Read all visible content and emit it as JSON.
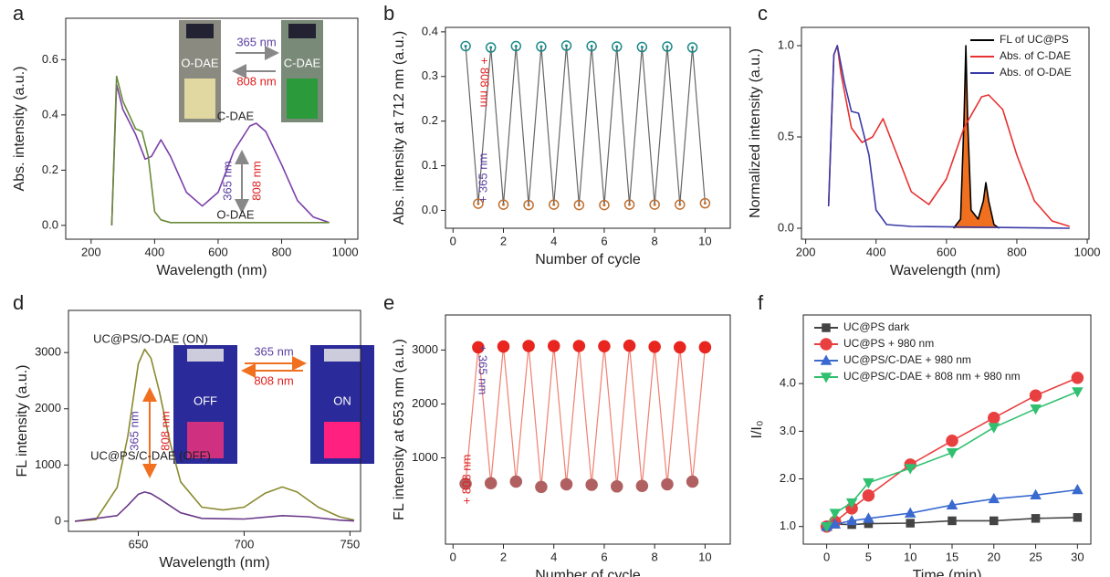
{
  "chart_data": [
    {
      "type": "line",
      "panel": "a",
      "xlabel": "Wavelength (nm)",
      "ylabel": "Abs. intensity (a.u.)",
      "xlim": [
        120,
        1040
      ],
      "ylim": [
        -0.05,
        0.75
      ],
      "xticks": [
        200,
        400,
        600,
        800,
        1000
      ],
      "yticks": [
        {
          "value": 0,
          "label": "0.0"
        },
        0.2,
        0.4,
        0.6
      ],
      "series": [
        {
          "name": "C-DAE",
          "color": "#7b3fa8",
          "x": [
            265,
            280,
            300,
            340,
            370,
            390,
            420,
            450,
            500,
            550,
            600,
            650,
            700,
            720,
            750,
            800,
            850,
            900,
            950
          ],
          "values": [
            0,
            0.51,
            0.42,
            0.33,
            0.24,
            0.25,
            0.31,
            0.25,
            0.12,
            0.07,
            0.12,
            0.27,
            0.36,
            0.37,
            0.34,
            0.22,
            0.09,
            0.03,
            0.01
          ]
        },
        {
          "name": "O-DAE",
          "color": "#6a8a3a",
          "x": [
            265,
            280,
            300,
            340,
            360,
            380,
            400,
            420,
            450,
            500,
            600,
            700,
            800,
            950
          ],
          "values": [
            0,
            0.54,
            0.45,
            0.35,
            0.34,
            0.25,
            0.05,
            0.02,
            0.01,
            0.01,
            0.01,
            0.01,
            0.01,
            0.01
          ]
        }
      ],
      "annotations": [
        "365 nm",
        "808 nm",
        "O-DAE",
        "C-DAE",
        "365 nm",
        "808 nm"
      ]
    },
    {
      "type": "scatter",
      "panel": "b",
      "xlabel": "Number of cycle",
      "ylabel": "Abs. intensity at 712 nm (a.u.)",
      "xlim": [
        -0.3,
        11
      ],
      "ylim": [
        -0.04,
        0.41
      ],
      "xticks": [
        0,
        2,
        4,
        6,
        8,
        10
      ],
      "yticks": [
        {
          "value": 0,
          "label": "0.0"
        },
        0.1,
        0.2,
        0.3,
        0.4
      ],
      "line_color": "#666666",
      "series": [
        {
          "color": "#1a8a8a",
          "marker": "open",
          "x": [
            0.5,
            1.5,
            2.5,
            3.5,
            4.5,
            5.5,
            6.5,
            7.5,
            8.5,
            9.5
          ],
          "values": [
            0.368,
            0.365,
            0.368,
            0.367,
            0.369,
            0.368,
            0.367,
            0.366,
            0.367,
            0.365
          ]
        },
        {
          "color": "#c07030",
          "marker": "open",
          "x": [
            1,
            2,
            3,
            4,
            5,
            6,
            7,
            8,
            9,
            10
          ],
          "values": [
            0.015,
            0.013,
            0.012,
            0.013,
            0.012,
            0.012,
            0.013,
            0.013,
            0.013,
            0.016
          ]
        }
      ],
      "annotations": [
        "+ 808 nm",
        "+ 365 nm"
      ]
    },
    {
      "type": "line",
      "panel": "c",
      "xlabel": "Wavelength (nm)",
      "ylabel": "Normalized intensity (a.u.)",
      "xlim": [
        188,
        1005
      ],
      "ylim": [
        -0.06,
        1.1
      ],
      "xticks": [
        200,
        400,
        600,
        800,
        1000
      ],
      "yticks": [
        {
          "value": 0,
          "label": "0.0"
        },
        0.5,
        {
          "value": 1,
          "label": "1.0"
        }
      ],
      "legend": "upper right",
      "series": [
        {
          "name": "FL of UC@PS",
          "color": "#000000",
          "fill": "#f07020",
          "x": [
            620,
            640,
            650,
            655,
            660,
            670,
            690,
            705,
            712,
            720,
            735,
            750
          ],
          "values": [
            0,
            0.05,
            0.6,
            1.0,
            0.6,
            0.1,
            0.05,
            0.15,
            0.25,
            0.15,
            0.02,
            0
          ]
        },
        {
          "name": "Abs. of C-DAE",
          "color": "#e83030",
          "x": [
            265,
            280,
            290,
            300,
            330,
            360,
            390,
            420,
            450,
            500,
            550,
            600,
            650,
            700,
            720,
            760,
            800,
            850,
            900,
            950
          ],
          "values": [
            0.12,
            0.95,
            1.0,
            0.85,
            0.55,
            0.47,
            0.5,
            0.6,
            0.45,
            0.2,
            0.13,
            0.27,
            0.55,
            0.72,
            0.73,
            0.65,
            0.4,
            0.15,
            0.04,
            0.01
          ]
        },
        {
          "name": "Abs. of O-DAE",
          "color": "#3a3aa8",
          "x": [
            265,
            280,
            290,
            310,
            330,
            350,
            380,
            400,
            430,
            500,
            950
          ],
          "values": [
            0.12,
            0.95,
            1.0,
            0.8,
            0.64,
            0.63,
            0.4,
            0.1,
            0.02,
            0.01,
            0
          ]
        }
      ]
    },
    {
      "type": "line",
      "panel": "d",
      "xlabel": "Wavelength (nm)",
      "ylabel": "FL intensity (a.u.)",
      "xlim": [
        617,
        755
      ],
      "ylim": [
        -180,
        3750
      ],
      "xticks": [
        650,
        700,
        750
      ],
      "yticks": [
        0,
        1000,
        2000,
        3000
      ],
      "series": [
        {
          "name": "UC@PS/O-DAE (ON)",
          "color": "#8a8a30",
          "x": [
            620,
            630,
            640,
            645,
            650,
            653,
            656,
            660,
            665,
            670,
            680,
            690,
            700,
            710,
            718,
            725,
            735,
            745,
            752
          ],
          "values": [
            0,
            30,
            600,
            1500,
            2800,
            3060,
            2900,
            2300,
            1400,
            700,
            250,
            200,
            250,
            500,
            610,
            520,
            250,
            80,
            20
          ]
        },
        {
          "name": "UC@PS/C-DAE (OFF)",
          "color": "#6a3a8a",
          "x": [
            620,
            640,
            645,
            650,
            653,
            656,
            660,
            670,
            680,
            700,
            718,
            730,
            745,
            752
          ],
          "values": [
            0,
            100,
            280,
            480,
            520,
            490,
            400,
            150,
            50,
            40,
            100,
            80,
            20,
            5
          ]
        }
      ],
      "annotations": [
        "365 nm",
        "808 nm",
        "OFF",
        "ON",
        "365 nm",
        "808 nm"
      ]
    },
    {
      "type": "scatter",
      "panel": "e",
      "xlabel": "Number of cycle",
      "ylabel": "FL intensity at 653 nm (a.u.)",
      "xlim": [
        -0.3,
        11
      ],
      "ylim": [
        -600,
        3650
      ],
      "xticks": [
        0,
        2,
        4,
        6,
        8,
        10
      ],
      "yticks": [
        1000,
        2000,
        3000
      ],
      "line_color": "#f08070",
      "series": [
        {
          "color": "#b06060",
          "marker": "filled",
          "x": [
            0.5,
            1.5,
            2.5,
            3.5,
            4.5,
            5.5,
            6.5,
            7.5,
            8.5,
            9.5
          ],
          "values": [
            520,
            530,
            560,
            460,
            510,
            500,
            470,
            480,
            510,
            560
          ]
        },
        {
          "color": "#e8251f",
          "marker": "filled",
          "x": [
            1,
            2,
            3,
            4,
            5,
            6,
            7,
            8,
            9,
            10
          ],
          "values": [
            3050,
            3065,
            3075,
            3075,
            3075,
            3070,
            3080,
            3060,
            3050,
            3050
          ]
        }
      ],
      "annotations": [
        "+ 365 nm",
        "+ 808 nm"
      ]
    },
    {
      "type": "line",
      "panel": "f",
      "xlabel": "Time (min)",
      "ylabel": "I/I₀",
      "xlim": [
        -2.8,
        31.6
      ],
      "ylim": [
        0.63,
        5.44
      ],
      "xticks": [
        0,
        5,
        10,
        15,
        20,
        25,
        30
      ],
      "yticks": [
        {
          "value": 1,
          "label": "1.0"
        },
        {
          "value": 2,
          "label": "2.0"
        },
        {
          "value": 3,
          "label": "3.0"
        },
        {
          "value": 4,
          "label": "4.0"
        }
      ],
      "legend": "upper left",
      "series": [
        {
          "name": "UC@PS dark",
          "color": "#444444",
          "marker": "square",
          "x": [
            0,
            1,
            3,
            5,
            10,
            15,
            20,
            25,
            30
          ],
          "values": [
            1.0,
            1.05,
            1.04,
            1.06,
            1.07,
            1.12,
            1.12,
            1.17,
            1.19
          ]
        },
        {
          "name": "UC@PS + 980 nm",
          "color": "#e84040",
          "marker": "circle",
          "x": [
            0,
            1,
            3,
            5,
            10,
            15,
            20,
            25,
            30
          ],
          "values": [
            1.0,
            1.1,
            1.38,
            1.65,
            2.3,
            2.8,
            3.28,
            3.75,
            4.12
          ]
        },
        {
          "name": "UC@PS/C-DAE + 980 nm",
          "color": "#3a6ad0",
          "marker": "triangle-up",
          "x": [
            0,
            1,
            3,
            5,
            10,
            15,
            20,
            25,
            30
          ],
          "values": [
            1.0,
            1.05,
            1.12,
            1.17,
            1.28,
            1.45,
            1.58,
            1.66,
            1.77
          ]
        },
        {
          "name": "UC@PS/C-DAE + 808 nm + 980 nm",
          "color": "#30c070",
          "marker": "triangle-down",
          "x": [
            0,
            1,
            3,
            5,
            10,
            15,
            20,
            25,
            30
          ],
          "values": [
            1.0,
            1.28,
            1.5,
            1.92,
            2.22,
            2.55,
            3.08,
            3.47,
            3.83
          ]
        }
      ]
    }
  ]
}
